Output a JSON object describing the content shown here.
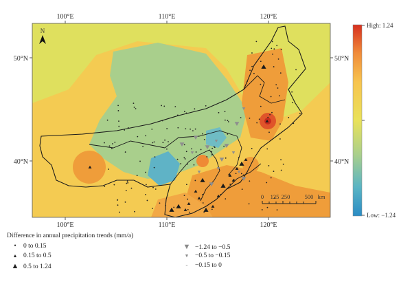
{
  "map": {
    "north_arrow_label": "N",
    "lon_ticks": [
      "100°E",
      "110°E",
      "120°E"
    ],
    "lat_ticks": [
      "50°N",
      "40°N"
    ],
    "scale_bar": {
      "labels": [
        "0",
        "125",
        "250",
        "500"
      ],
      "unit": "km"
    }
  },
  "colorbar": {
    "high_label": "High: 1.24",
    "low_label": "Low: −1.24",
    "colors": [
      "#d7301f",
      "#f4a259",
      "#f7d154",
      "#e6e05a",
      "#a8d08d",
      "#5ab4c4",
      "#2b8cc4"
    ]
  },
  "legend": {
    "title": "Difference in annual precipitation trends (mm/a)",
    "items": [
      {
        "symbol": "dot",
        "label": "0 to 0.15"
      },
      {
        "symbol": "triangle-small",
        "label": "0.15 to 0.5"
      },
      {
        "symbol": "triangle-large",
        "label": "0.5 to 1.24"
      },
      {
        "symbol": "inv-triangle-large",
        "label": "−1.24 to −0.5"
      },
      {
        "symbol": "inv-triangle-small",
        "label": "−0.5 to −0.15"
      },
      {
        "symbol": "dash",
        "label": "−0.15 to 0"
      }
    ]
  }
}
